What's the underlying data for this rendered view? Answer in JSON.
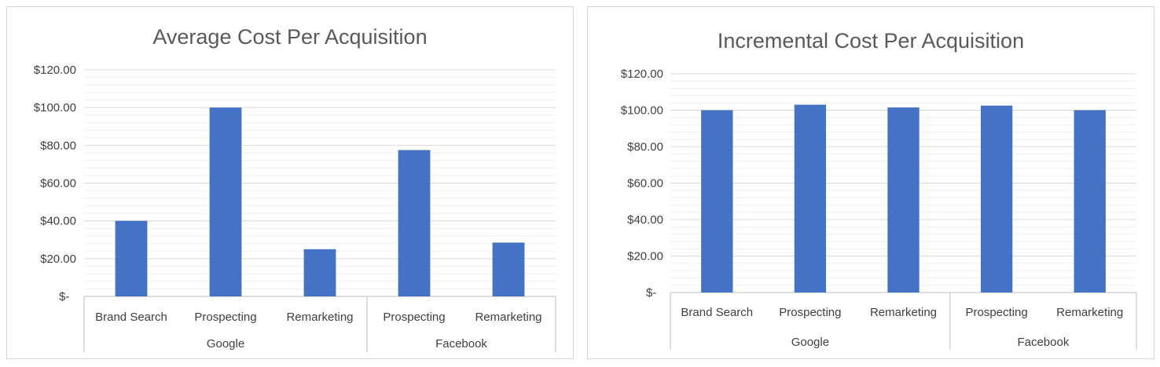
{
  "chart_data": [
    {
      "type": "bar",
      "title": "Average Cost Per Acquisition",
      "groups": [
        {
          "label": "Google",
          "categories": [
            "Brand Search",
            "Prospecting",
            "Remarketing"
          ]
        },
        {
          "label": "Facebook",
          "categories": [
            "Prospecting",
            "Remarketing"
          ]
        }
      ],
      "categories": [
        "Brand Search",
        "Prospecting",
        "Remarketing",
        "Prospecting",
        "Remarketing"
      ],
      "values": [
        40,
        100,
        25,
        77.5,
        28.5
      ],
      "ylim": [
        0,
        120
      ],
      "yticks": [
        0,
        20,
        40,
        60,
        80,
        100,
        120
      ],
      "ytick_labels": [
        "$-",
        "$20.00",
        "$40.00",
        "$60.00",
        "$80.00",
        "$100.00",
        "$120.00"
      ],
      "grid": true,
      "bar_color": "#4472c4"
    },
    {
      "type": "bar",
      "title": "Incremental Cost Per Acquisition",
      "groups": [
        {
          "label": "Google",
          "categories": [
            "Brand Search",
            "Prospecting",
            "Remarketing"
          ]
        },
        {
          "label": "Facebook",
          "categories": [
            "Prospecting",
            "Remarketing"
          ]
        }
      ],
      "categories": [
        "Brand Search",
        "Prospecting",
        "Remarketing",
        "Prospecting",
        "Remarketing"
      ],
      "values": [
        100,
        103,
        101.5,
        102.5,
        100
      ],
      "ylim": [
        0,
        120
      ],
      "yticks": [
        0,
        20,
        40,
        60,
        80,
        100,
        120
      ],
      "ytick_labels": [
        "$-",
        "$20.00",
        "$40.00",
        "$60.00",
        "$80.00",
        "$100.00",
        "$120.00"
      ],
      "grid": true,
      "bar_color": "#4472c4"
    }
  ]
}
